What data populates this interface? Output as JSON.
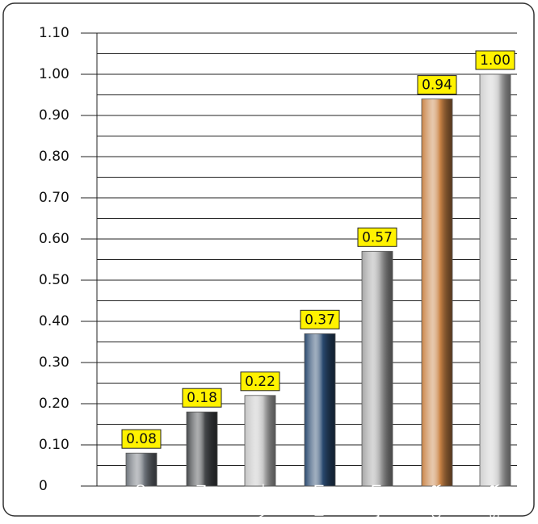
{
  "chart_data": {
    "type": "bar",
    "categories": [
      "LEAD",
      "IRON",
      "NICKEL",
      "MAGNESIUM",
      "ALUMINUM",
      "COPPER",
      "SILVER"
    ],
    "values": [
      0.08,
      0.18,
      0.22,
      0.37,
      0.57,
      0.94,
      1.0
    ],
    "value_labels": [
      "0.08",
      "0.18",
      "0.22",
      "0.37",
      "0.57",
      "0.94",
      "1.00"
    ],
    "colors": [
      "#6f757c",
      "#46494c",
      "#c4c4c4",
      "#2a4a70",
      "#a6a6a6",
      "#c98346",
      "#cfcfcf"
    ],
    "ylim": [
      0,
      1.1
    ],
    "yticks": [
      0,
      {
        "value": 0.1,
        "label": "0.10"
      },
      {
        "value": 0.2,
        "label": "0.20"
      },
      {
        "value": 0.3,
        "label": "0.30"
      },
      {
        "value": 0.4,
        "label": "0.40"
      },
      {
        "value": 0.5,
        "label": "0.50"
      },
      {
        "value": 0.6,
        "label": "0.60"
      },
      {
        "value": 0.7,
        "label": "0.70"
      },
      {
        "value": 0.8,
        "label": "0.80"
      },
      {
        "value": 0.9,
        "label": "0.90"
      },
      {
        "value": 1.0,
        "label": "1.00"
      },
      {
        "value": 1.1,
        "label": "1.10"
      }
    ],
    "grid": true
  }
}
